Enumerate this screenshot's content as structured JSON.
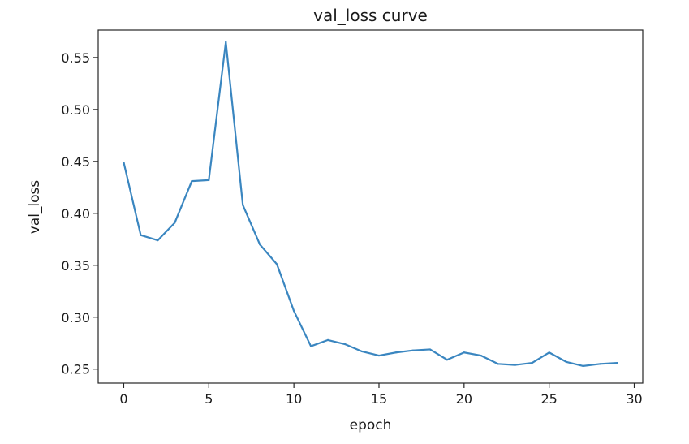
{
  "chart_data": {
    "type": "line",
    "title": "val_loss curve",
    "xlabel": "epoch",
    "ylabel": "val_loss",
    "xlim": [
      -1.5,
      30.5
    ],
    "ylim": [
      0.2365,
      0.5765
    ],
    "xticks": [
      0,
      5,
      10,
      15,
      20,
      25,
      30
    ],
    "yticks": [
      0.25,
      0.3,
      0.35,
      0.4,
      0.45,
      0.5,
      0.55
    ],
    "xtick_labels": [
      "0",
      "5",
      "10",
      "15",
      "20",
      "25",
      "30"
    ],
    "ytick_labels": [
      "0.25",
      "0.30",
      "0.35",
      "0.40",
      "0.45",
      "0.50",
      "0.55"
    ],
    "grid": false,
    "series": [
      {
        "color": "#3a86c0",
        "x": [
          0,
          1,
          2,
          3,
          4,
          5,
          6,
          7,
          8,
          9,
          10,
          11,
          12,
          13,
          14,
          15,
          16,
          17,
          18,
          19,
          20,
          21,
          22,
          23,
          24,
          25,
          26,
          27,
          28,
          29
        ],
        "y": [
          0.449,
          0.379,
          0.374,
          0.391,
          0.431,
          0.432,
          0.565,
          0.408,
          0.37,
          0.351,
          0.306,
          0.272,
          0.278,
          0.274,
          0.267,
          0.263,
          0.266,
          0.268,
          0.269,
          0.259,
          0.266,
          0.263,
          0.255,
          0.254,
          0.256,
          0.266,
          0.257,
          0.253,
          0.255,
          0.256
        ]
      }
    ]
  }
}
